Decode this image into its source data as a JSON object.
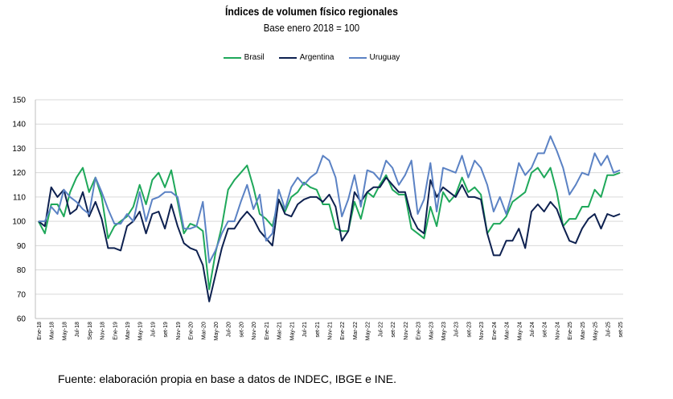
{
  "chart_data": {
    "type": "line",
    "title": "Índices de volumen físico regionales",
    "subtitle": "Base enero 2018 = 100",
    "xlabel": "",
    "ylabel": "",
    "ylim": [
      60,
      150
    ],
    "yticks": [
      60,
      70,
      80,
      90,
      100,
      110,
      120,
      130,
      140,
      150
    ],
    "grid": true,
    "legend_position": "top-center",
    "x": [
      "Ene-18",
      "Feb-18",
      "Mar-18",
      "Abr-18",
      "May-18",
      "Jun-18",
      "Jul-18",
      "Ago-18",
      "Sep-18",
      "Oct-18",
      "Nov-18",
      "Dic-18",
      "Ene-19",
      "Feb-19",
      "Mar-19",
      "Abr-19",
      "May-19",
      "Jun-19",
      "Jul-19",
      "Ago-19",
      "Sep-19",
      "Oct-19",
      "Nov-19",
      "Dic-19",
      "Ene-20",
      "Feb-20",
      "Mar-20",
      "Abr-20",
      "May-20",
      "Jun-20",
      "Jul-20",
      "Ago-20",
      "Sep-20",
      "Oct-20",
      "Nov-20",
      "Dic-20",
      "Ene-21",
      "Feb-21",
      "Mar-21",
      "Abr-21",
      "May-21",
      "Jun-21",
      "Jul-21",
      "Ago-21",
      "Sep-21",
      "Oct-21",
      "Nov-21",
      "Dic-21",
      "Ene-22",
      "Feb-22",
      "Mar-22",
      "Abr-22",
      "May-22",
      "Jun-22",
      "Jul-22",
      "Ago-22",
      "Sep-22",
      "Oct-22",
      "Nov-22",
      "Dic-22",
      "Ene-23",
      "Feb-23",
      "Mar-23",
      "Abr-23",
      "May-23",
      "Jun-23",
      "Jul-23",
      "Ago-23",
      "Sep-23",
      "Oct-23",
      "Nov-23",
      "Dic-23",
      "Ene-24",
      "Feb-24",
      "Mar-24",
      "Abr-24",
      "May-24",
      "Jun-24",
      "Jul-24",
      "Ago-24",
      "Sep-24",
      "Oct-24",
      "Nov-24",
      "Dic-24",
      "Ene-25",
      "Feb-25",
      "Mar-25",
      "Abr-25",
      "May-25",
      "Jun-25",
      "Jul-25",
      "Ago-25",
      "Sep-25"
    ],
    "tick_labels": [
      "Ene-18",
      "Mar-18",
      "May-18",
      "Jul-18",
      "Sep-18",
      "Nov-18",
      "Ene-19",
      "Mar-19",
      "May-19",
      "Jul-19",
      "set-19",
      "Nov-19",
      "Ene-20",
      "Mar-20",
      "May-20",
      "Jul-20",
      "set-20",
      "Nov-20",
      "Ene-21",
      "Mar-21",
      "May-21",
      "Jul-21",
      "set-21",
      "Nov-21",
      "Ene-22",
      "Mar-22",
      "May-22",
      "Jul-22",
      "set-22",
      "Nov-22",
      "Ene-23",
      "Mar-23",
      "May-23",
      "Jul-23",
      "set-23",
      "Nov-23",
      "Ene-24",
      "Mar-24",
      "May-24",
      "Jul-24",
      "set-24",
      "Nov-24",
      "Ene-25",
      "Mar-25",
      "May-25",
      "Jul-25",
      "set-25"
    ],
    "series": [
      {
        "name": "Brasil",
        "color": "#1fa85a",
        "values": [
          100,
          95,
          107,
          107,
          102,
          112,
          118,
          122,
          112,
          118,
          110,
          93,
          98,
          100,
          102,
          106,
          115,
          107,
          117,
          120,
          114,
          121,
          108,
          95,
          99,
          98,
          96,
          72,
          87,
          98,
          113,
          117,
          120,
          123,
          114,
          103,
          101,
          98,
          109,
          104,
          110,
          112,
          116,
          114,
          113,
          107,
          107,
          97,
          96,
          96,
          108,
          101,
          112,
          110,
          115,
          119,
          113,
          111,
          111,
          97,
          95,
          93,
          106,
          98,
          112,
          108,
          111,
          118,
          112,
          114,
          111,
          95,
          99,
          99,
          102,
          108,
          110,
          112,
          120,
          122,
          118,
          122,
          112,
          98,
          101,
          101,
          106,
          106,
          113,
          110,
          119,
          119,
          120
        ]
      },
      {
        "name": "Argentina",
        "color": "#0e2150",
        "values": [
          100,
          98,
          114,
          110,
          113,
          103,
          105,
          112,
          102,
          108,
          101,
          89,
          89,
          88,
          98,
          100,
          104,
          95,
          103,
          104,
          97,
          107,
          98,
          91,
          89,
          88,
          82,
          67,
          78,
          89,
          97,
          97,
          101,
          104,
          101,
          96,
          93,
          90,
          109,
          103,
          102,
          107,
          109,
          110,
          110,
          108,
          111,
          106,
          92,
          96,
          112,
          108,
          112,
          114,
          114,
          118,
          115,
          112,
          112,
          102,
          97,
          95,
          117,
          110,
          114,
          112,
          110,
          115,
          110,
          110,
          109,
          95,
          86,
          86,
          92,
          92,
          97,
          89,
          104,
          107,
          104,
          108,
          105,
          98,
          92,
          91,
          97,
          101,
          103,
          97,
          103,
          102,
          103
        ]
      },
      {
        "name": "Uruguay",
        "color": "#5b82c4",
        "values": [
          100,
          100,
          106,
          103,
          113,
          110,
          108,
          105,
          103,
          118,
          112,
          105,
          99,
          99,
          103,
          100,
          112,
          100,
          109,
          110,
          112,
          112,
          110,
          97,
          97,
          98,
          108,
          83,
          88,
          95,
          100,
          100,
          108,
          115,
          105,
          111,
          92,
          95,
          113,
          105,
          114,
          118,
          115,
          118,
          120,
          127,
          125,
          118,
          102,
          109,
          119,
          106,
          121,
          120,
          117,
          125,
          122,
          115,
          119,
          125,
          103,
          109,
          124,
          104,
          122,
          121,
          120,
          127,
          118,
          125,
          122,
          115,
          104,
          110,
          103,
          112,
          124,
          119,
          122,
          128,
          128,
          135,
          129,
          122,
          111,
          115,
          120,
          119,
          128,
          123,
          127,
          120,
          121
        ]
      }
    ]
  },
  "legend": {
    "items": [
      "Brasil",
      "Argentina",
      "Uruguay"
    ]
  },
  "footer": {
    "source": "Fuente: elaboración propia en base a datos de INDEC, IBGE e INE."
  }
}
